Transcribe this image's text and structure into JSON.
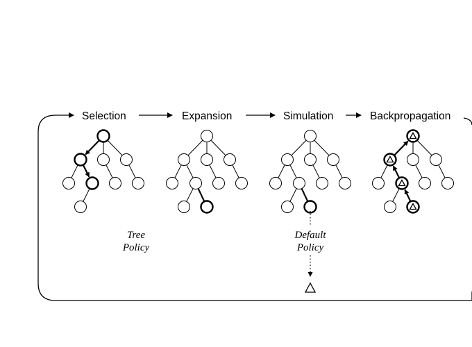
{
  "stages": [
    {
      "label": "Selection"
    },
    {
      "label": "Expansion"
    },
    {
      "label": "Simulation"
    },
    {
      "label": "Backpropagation"
    }
  ],
  "policies": {
    "tree_policy": {
      "line1": "Tree",
      "line2": "Policy"
    },
    "default_policy": {
      "line1": "Default",
      "line2": "Policy"
    }
  },
  "colors": {
    "ink": "#000000",
    "background": "#ffffff"
  },
  "icons": {
    "terminal": "triangle-icon",
    "node": "circle-icon"
  }
}
